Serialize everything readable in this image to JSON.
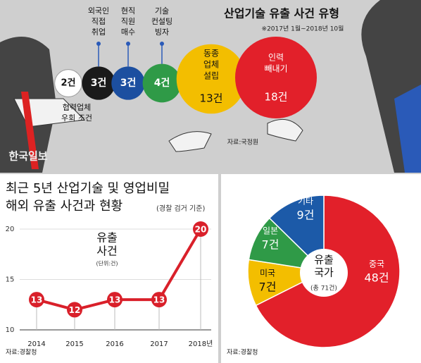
{
  "chart_data": [
    {
      "type": "bubble",
      "title": "산업기술 유출 사건 유형",
      "subtitle": "※2017년 1월~2018년 10월",
      "source": "자료:국정원",
      "watermark": "한국일보",
      "categories": [
        [
          "협력업체",
          "우회 조건"
        ],
        [
          "외국인",
          "직접",
          "취업"
        ],
        [
          "현직",
          "직원",
          "매수"
        ],
        [
          "기술",
          "컨설팅",
          "빙자"
        ],
        [
          "동종",
          "업체",
          "설립"
        ],
        [
          "인력",
          "빼내기"
        ]
      ],
      "values": [
        2,
        3,
        3,
        4,
        13,
        18
      ],
      "value_labels": [
        "2건",
        "3건",
        "3건",
        "4건",
        "13건",
        "18건"
      ],
      "colors": [
        "#ffffff",
        "#1a1a1a",
        "#1c4fa0",
        "#2f9a47",
        "#f3be00",
        "#e2202a"
      ]
    },
    {
      "type": "line",
      "title": [
        "최근 5년 산업기술 및 영업비밀",
        "해외 유출 사건과 현황"
      ],
      "title_note": "(경찰 검거 기준)",
      "label": [
        "유출",
        "사건"
      ],
      "unit": "(단위:건)",
      "source": "자료:경찰청",
      "categories": [
        "2014",
        "2015",
        "2016",
        "2017",
        "2018년"
      ],
      "values": [
        13,
        12,
        13,
        13,
        20
      ],
      "color": "#d9202a",
      "ylim": [
        10,
        20.7
      ],
      "yticks": [
        10,
        15,
        20
      ]
    },
    {
      "type": "pie",
      "label": [
        "유출",
        "국가"
      ],
      "total_label": "(총 71건)",
      "source": "자료:경찰청",
      "categories": [
        "중국",
        "미국",
        "일본",
        "기타"
      ],
      "values": [
        48,
        7,
        7,
        9
      ],
      "value_labels": [
        "48건",
        "7건",
        "7건",
        "9건"
      ],
      "colors": [
        "#e2202a",
        "#f3be00",
        "#2f9a47",
        "#1c5aa8"
      ]
    }
  ]
}
